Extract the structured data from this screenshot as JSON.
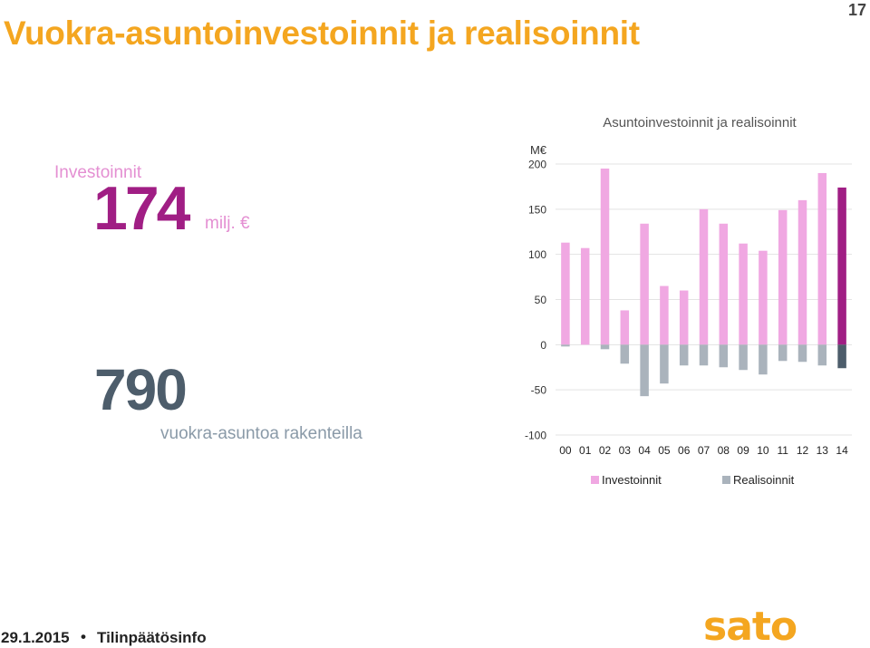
{
  "slide": {
    "title": "Vuokra-asuntoinvestoinnit ja realisoinnit",
    "page_number": "17"
  },
  "kpis": {
    "investments_label": "Investoinnit",
    "investments_value": "174",
    "investments_unit": "milj. €",
    "homes_value": "790",
    "homes_label": "vuokra-asuntoa rakenteilla"
  },
  "footer": {
    "date": "29.1.2015",
    "separator": "•",
    "title": "Tilinpäätösinfo",
    "logo_text": "sato"
  },
  "colors": {
    "title": "#f4a620",
    "investments": "#f0a8e2",
    "investments_latest": "#a01e84",
    "realisations": "#aab3bc",
    "realisations_latest": "#4d5d6b",
    "logo": "#f4a620"
  },
  "chart_data": {
    "type": "bar",
    "title": "Asuntoinvestoinnit ja realisoinnit",
    "unit_label": "M€",
    "categories": [
      "00",
      "01",
      "02",
      "03",
      "04",
      "05",
      "06",
      "07",
      "08",
      "09",
      "10",
      "11",
      "12",
      "13",
      "14"
    ],
    "y_ticks": [
      200,
      150,
      100,
      50,
      0,
      -50,
      -100
    ],
    "ylim": [
      -100,
      200
    ],
    "grid": true,
    "legend_position": "bottom",
    "series": [
      {
        "name": "Investoinnit",
        "values": [
          113,
          107,
          195,
          38,
          134,
          65,
          60,
          150,
          134,
          112,
          104,
          149,
          160,
          190,
          174
        ]
      },
      {
        "name": "Realisoinnit",
        "values": [
          -2,
          0,
          -5,
          -21,
          -57,
          -43,
          -23,
          -23,
          -25,
          -28,
          -33,
          -18,
          -19,
          -23,
          -26
        ]
      }
    ]
  }
}
